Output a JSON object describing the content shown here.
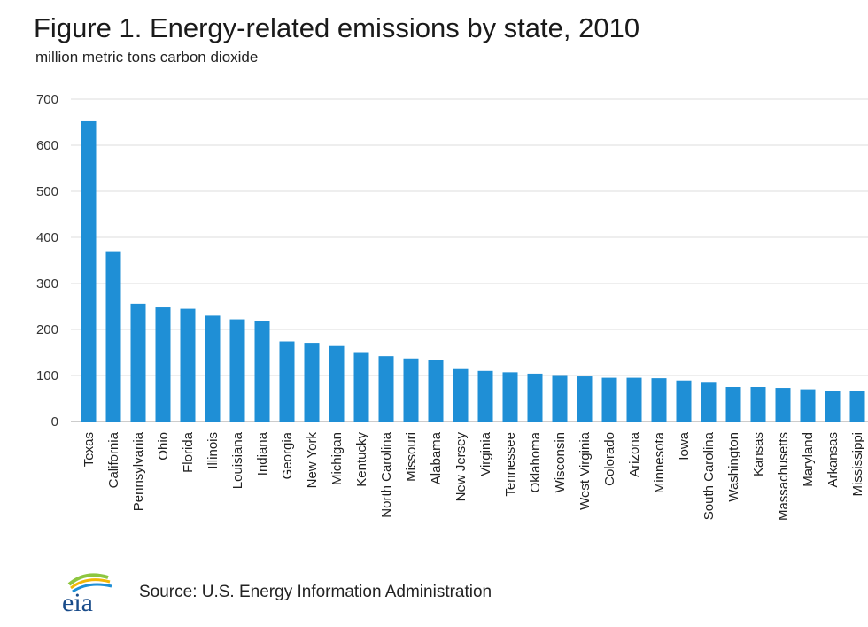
{
  "chart_data": {
    "type": "bar",
    "title": "Figure 1. Energy-related emissions by state, 2010",
    "subtitle": "million metric tons carbon dioxide",
    "ylim": [
      0,
      700
    ],
    "yticks": [
      0,
      100,
      200,
      300,
      400,
      500,
      600,
      700
    ],
    "grid": true,
    "bar_color": "#1f8fd6",
    "categories": [
      "Texas",
      "California",
      "Pennsylvania",
      "Ohio",
      "Florida",
      "Illinois",
      "Louisiana",
      "Indiana",
      "Georgia",
      "New York",
      "Michigan",
      "Kentucky",
      "North Carolina",
      "Missouri",
      "Alabama",
      "New Jersey",
      "Virginia",
      "Tennessee",
      "Oklahoma",
      "Wisconsin",
      "West Virginia",
      "Colorado",
      "Arizona",
      "Minnesota",
      "Iowa",
      "South Carolina",
      "Washington",
      "Kansas",
      "Massachusetts",
      "Maryland",
      "Arkansas",
      "Mississippi"
    ],
    "values": [
      652,
      370,
      256,
      248,
      245,
      230,
      222,
      219,
      174,
      171,
      164,
      149,
      142,
      137,
      133,
      114,
      110,
      107,
      104,
      99,
      98,
      95,
      95,
      94,
      89,
      86,
      75,
      75,
      73,
      70,
      66,
      66
    ]
  },
  "footer": {
    "logo_text": "eia",
    "source": "Source:  U.S. Energy Information  Administration"
  }
}
